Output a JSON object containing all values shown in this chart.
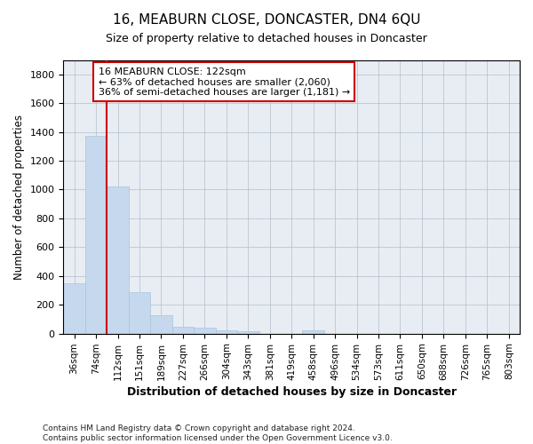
{
  "title": "16, MEABURN CLOSE, DONCASTER, DN4 6QU",
  "subtitle": "Size of property relative to detached houses in Doncaster",
  "xlabel": "Distribution of detached houses by size in Doncaster",
  "ylabel": "Number of detached properties",
  "bar_color": "#c5d8ed",
  "bar_edge_color": "#a8c4df",
  "axes_facecolor": "#e8edf4",
  "fig_facecolor": "#ffffff",
  "grid_color": "#b0bcc8",
  "categories": [
    "36sqm",
    "74sqm",
    "112sqm",
    "151sqm",
    "189sqm",
    "227sqm",
    "266sqm",
    "304sqm",
    "343sqm",
    "381sqm",
    "419sqm",
    "458sqm",
    "496sqm",
    "534sqm",
    "573sqm",
    "611sqm",
    "650sqm",
    "688sqm",
    "726sqm",
    "765sqm",
    "803sqm"
  ],
  "values": [
    350,
    1370,
    1020,
    285,
    130,
    45,
    40,
    25,
    15,
    0,
    0,
    20,
    0,
    0,
    0,
    0,
    0,
    0,
    0,
    0,
    0
  ],
  "annotation_line1": "16 MEABURN CLOSE: 122sqm",
  "annotation_line2": "← 63% of detached houses are smaller (2,060)",
  "annotation_line3": "36% of semi-detached houses are larger (1,181) →",
  "annotation_box_facecolor": "#ffffff",
  "annotation_box_edgecolor": "#cc0000",
  "vline_color": "#cc0000",
  "vline_x_index": 2,
  "ylim": [
    0,
    1900
  ],
  "ytick_interval": 200,
  "footnote": "Contains HM Land Registry data © Crown copyright and database right 2024.\nContains public sector information licensed under the Open Government Licence v3.0."
}
